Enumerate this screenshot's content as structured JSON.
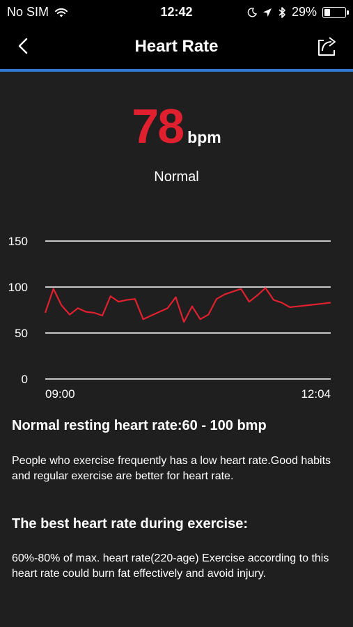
{
  "status_bar": {
    "carrier": "No SIM",
    "time": "12:42",
    "battery_percent": "29%",
    "battery_level": 0.29,
    "icons": [
      "wifi-icon",
      "moon-icon",
      "location-icon",
      "bluetooth-icon",
      "battery-icon"
    ]
  },
  "nav": {
    "title": "Heart Rate",
    "back_icon": "chevron-left-icon",
    "share_icon": "share-icon"
  },
  "reading": {
    "value": "78",
    "unit": "bpm",
    "status": "Normal"
  },
  "chart_data": {
    "type": "line",
    "y_ticks": [
      "150",
      "100",
      "50",
      "0"
    ],
    "y_tick_values": [
      150,
      100,
      50,
      0
    ],
    "ylim": [
      0,
      150
    ],
    "x_labels": [
      "09:00",
      "12:04"
    ],
    "grid": true,
    "series": [
      {
        "color": "#e0202e",
        "values": [
          72,
          98,
          80,
          70,
          77,
          73,
          72,
          69,
          90,
          84,
          86,
          87,
          65,
          69,
          73,
          77,
          89,
          62,
          79,
          65,
          70,
          87,
          92,
          95,
          98,
          84,
          91,
          99,
          86,
          83,
          78,
          79,
          80,
          81,
          82,
          83
        ]
      }
    ]
  },
  "info": {
    "resting_title": "Normal resting heart rate:60 - 100 bmp",
    "resting_text": "People who exercise frequently has a low heart rate.Good habits and regular exercise are better for heart rate.",
    "exercise_title": "The best heart rate during exercise:",
    "exercise_text": "60%-80% of max. heart rate(220-age) Exercise according to this heart rate could burn fat effectively and avoid injury."
  },
  "colors": {
    "accent": "#e0202e",
    "nav_accent_line": "#2f78d3",
    "background": "#1f1f1f"
  }
}
